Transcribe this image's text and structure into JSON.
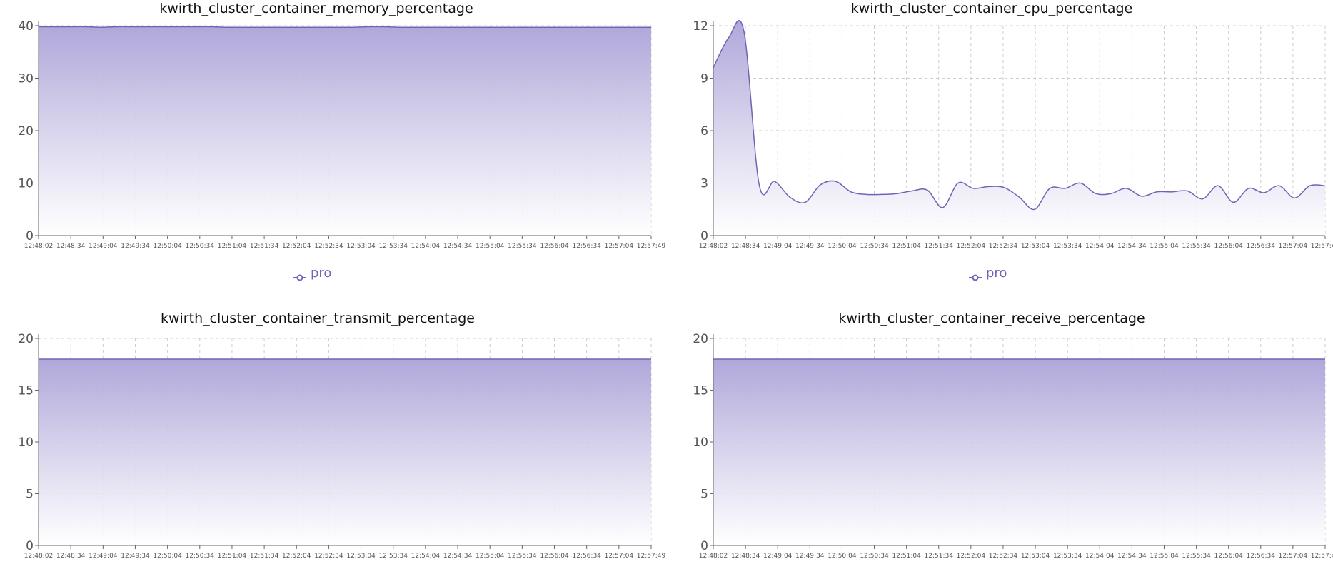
{
  "theme": {
    "series_color": "#7064b6",
    "grid_color": "#cccccc",
    "axis_color": "#666666",
    "fill_top": "#aca3d8",
    "fill_bottom": "#ffffff"
  },
  "legend": {
    "label": "pro",
    "icon": "line-circle-icon"
  },
  "x_ticks": [
    "12:48:02",
    "12:48:34",
    "12:49:04",
    "12:49:34",
    "12:50:04",
    "12:50:34",
    "12:51:04",
    "12:51:34",
    "12:52:04",
    "12:52:34",
    "12:53:04",
    "12:53:34",
    "12:54:04",
    "12:54:34",
    "12:55:04",
    "12:55:34",
    "12:56:04",
    "12:56:34",
    "12:57:04",
    "12:57:49"
  ],
  "chart_data": [
    {
      "type": "area",
      "title": "kwirth_cluster_container_memory_percentage",
      "xlabel": "",
      "ylabel": "",
      "ylim": [
        0,
        40
      ],
      "yticks": [
        "0",
        "10",
        "20",
        "30",
        "40"
      ],
      "grid": true,
      "legend_shown": true,
      "series": [
        {
          "name": "pro",
          "values": [
            39.8,
            39.8,
            39.8,
            39.8,
            39.7,
            39.8,
            39.8,
            39.8,
            39.8,
            39.8,
            39.8,
            39.8,
            39.7,
            39.7,
            39.7,
            39.7,
            39.7,
            39.7,
            39.7,
            39.7,
            39.7,
            39.8,
            39.8,
            39.7,
            39.7,
            39.7,
            39.7,
            39.7,
            39.7,
            39.7,
            39.7,
            39.7,
            39.7,
            39.7,
            39.7,
            39.7,
            39.7,
            39.7,
            39.7,
            39.7
          ]
        }
      ]
    },
    {
      "type": "area",
      "title": "kwirth_cluster_container_cpu_percentage",
      "xlabel": "",
      "ylabel": "",
      "ylim": [
        0,
        12
      ],
      "yticks": [
        "0",
        "3",
        "6",
        "9",
        "12"
      ],
      "grid": true,
      "legend_shown": true,
      "series": [
        {
          "name": "pro",
          "values": [
            9.6,
            11.3,
            11.7,
            2.9,
            3.1,
            2.2,
            1.9,
            2.9,
            3.1,
            2.5,
            2.35,
            2.35,
            2.4,
            2.55,
            2.6,
            1.6,
            3.0,
            2.7,
            2.8,
            2.75,
            2.2,
            1.5,
            2.7,
            2.7,
            3.0,
            2.4,
            2.4,
            2.7,
            2.25,
            2.5,
            2.5,
            2.55,
            2.1,
            2.85,
            1.9,
            2.7,
            2.45,
            2.85,
            2.15,
            2.85,
            2.85
          ]
        }
      ]
    },
    {
      "type": "area",
      "title": "kwirth_cluster_container_transmit_percentage",
      "xlabel": "",
      "ylabel": "",
      "ylim": [
        0,
        20
      ],
      "yticks": [
        "0",
        "5",
        "10",
        "15",
        "20"
      ],
      "grid": true,
      "legend_shown": false,
      "series": [
        {
          "name": "pro",
          "values": [
            18,
            18,
            18,
            18,
            18,
            18,
            18,
            18,
            18,
            18,
            18,
            18,
            18,
            18,
            18,
            18,
            18,
            18,
            18,
            18,
            18,
            18,
            18,
            18,
            18,
            18,
            18,
            18,
            18,
            18,
            18,
            18,
            18,
            18,
            18,
            18,
            18,
            18,
            18,
            18
          ]
        }
      ]
    },
    {
      "type": "area",
      "title": "kwirth_cluster_container_receive_percentage",
      "xlabel": "",
      "ylabel": "",
      "ylim": [
        0,
        20
      ],
      "yticks": [
        "0",
        "5",
        "10",
        "15",
        "20"
      ],
      "grid": true,
      "legend_shown": false,
      "series": [
        {
          "name": "pro",
          "values": [
            18,
            18,
            18,
            18,
            18,
            18,
            18,
            18,
            18,
            18,
            18,
            18,
            18,
            18,
            18,
            18,
            18,
            18,
            18,
            18,
            18,
            18,
            18,
            18,
            18,
            18,
            18,
            18,
            18,
            18,
            18,
            18,
            18,
            18,
            18,
            18,
            18,
            18,
            18,
            18
          ]
        }
      ]
    }
  ]
}
